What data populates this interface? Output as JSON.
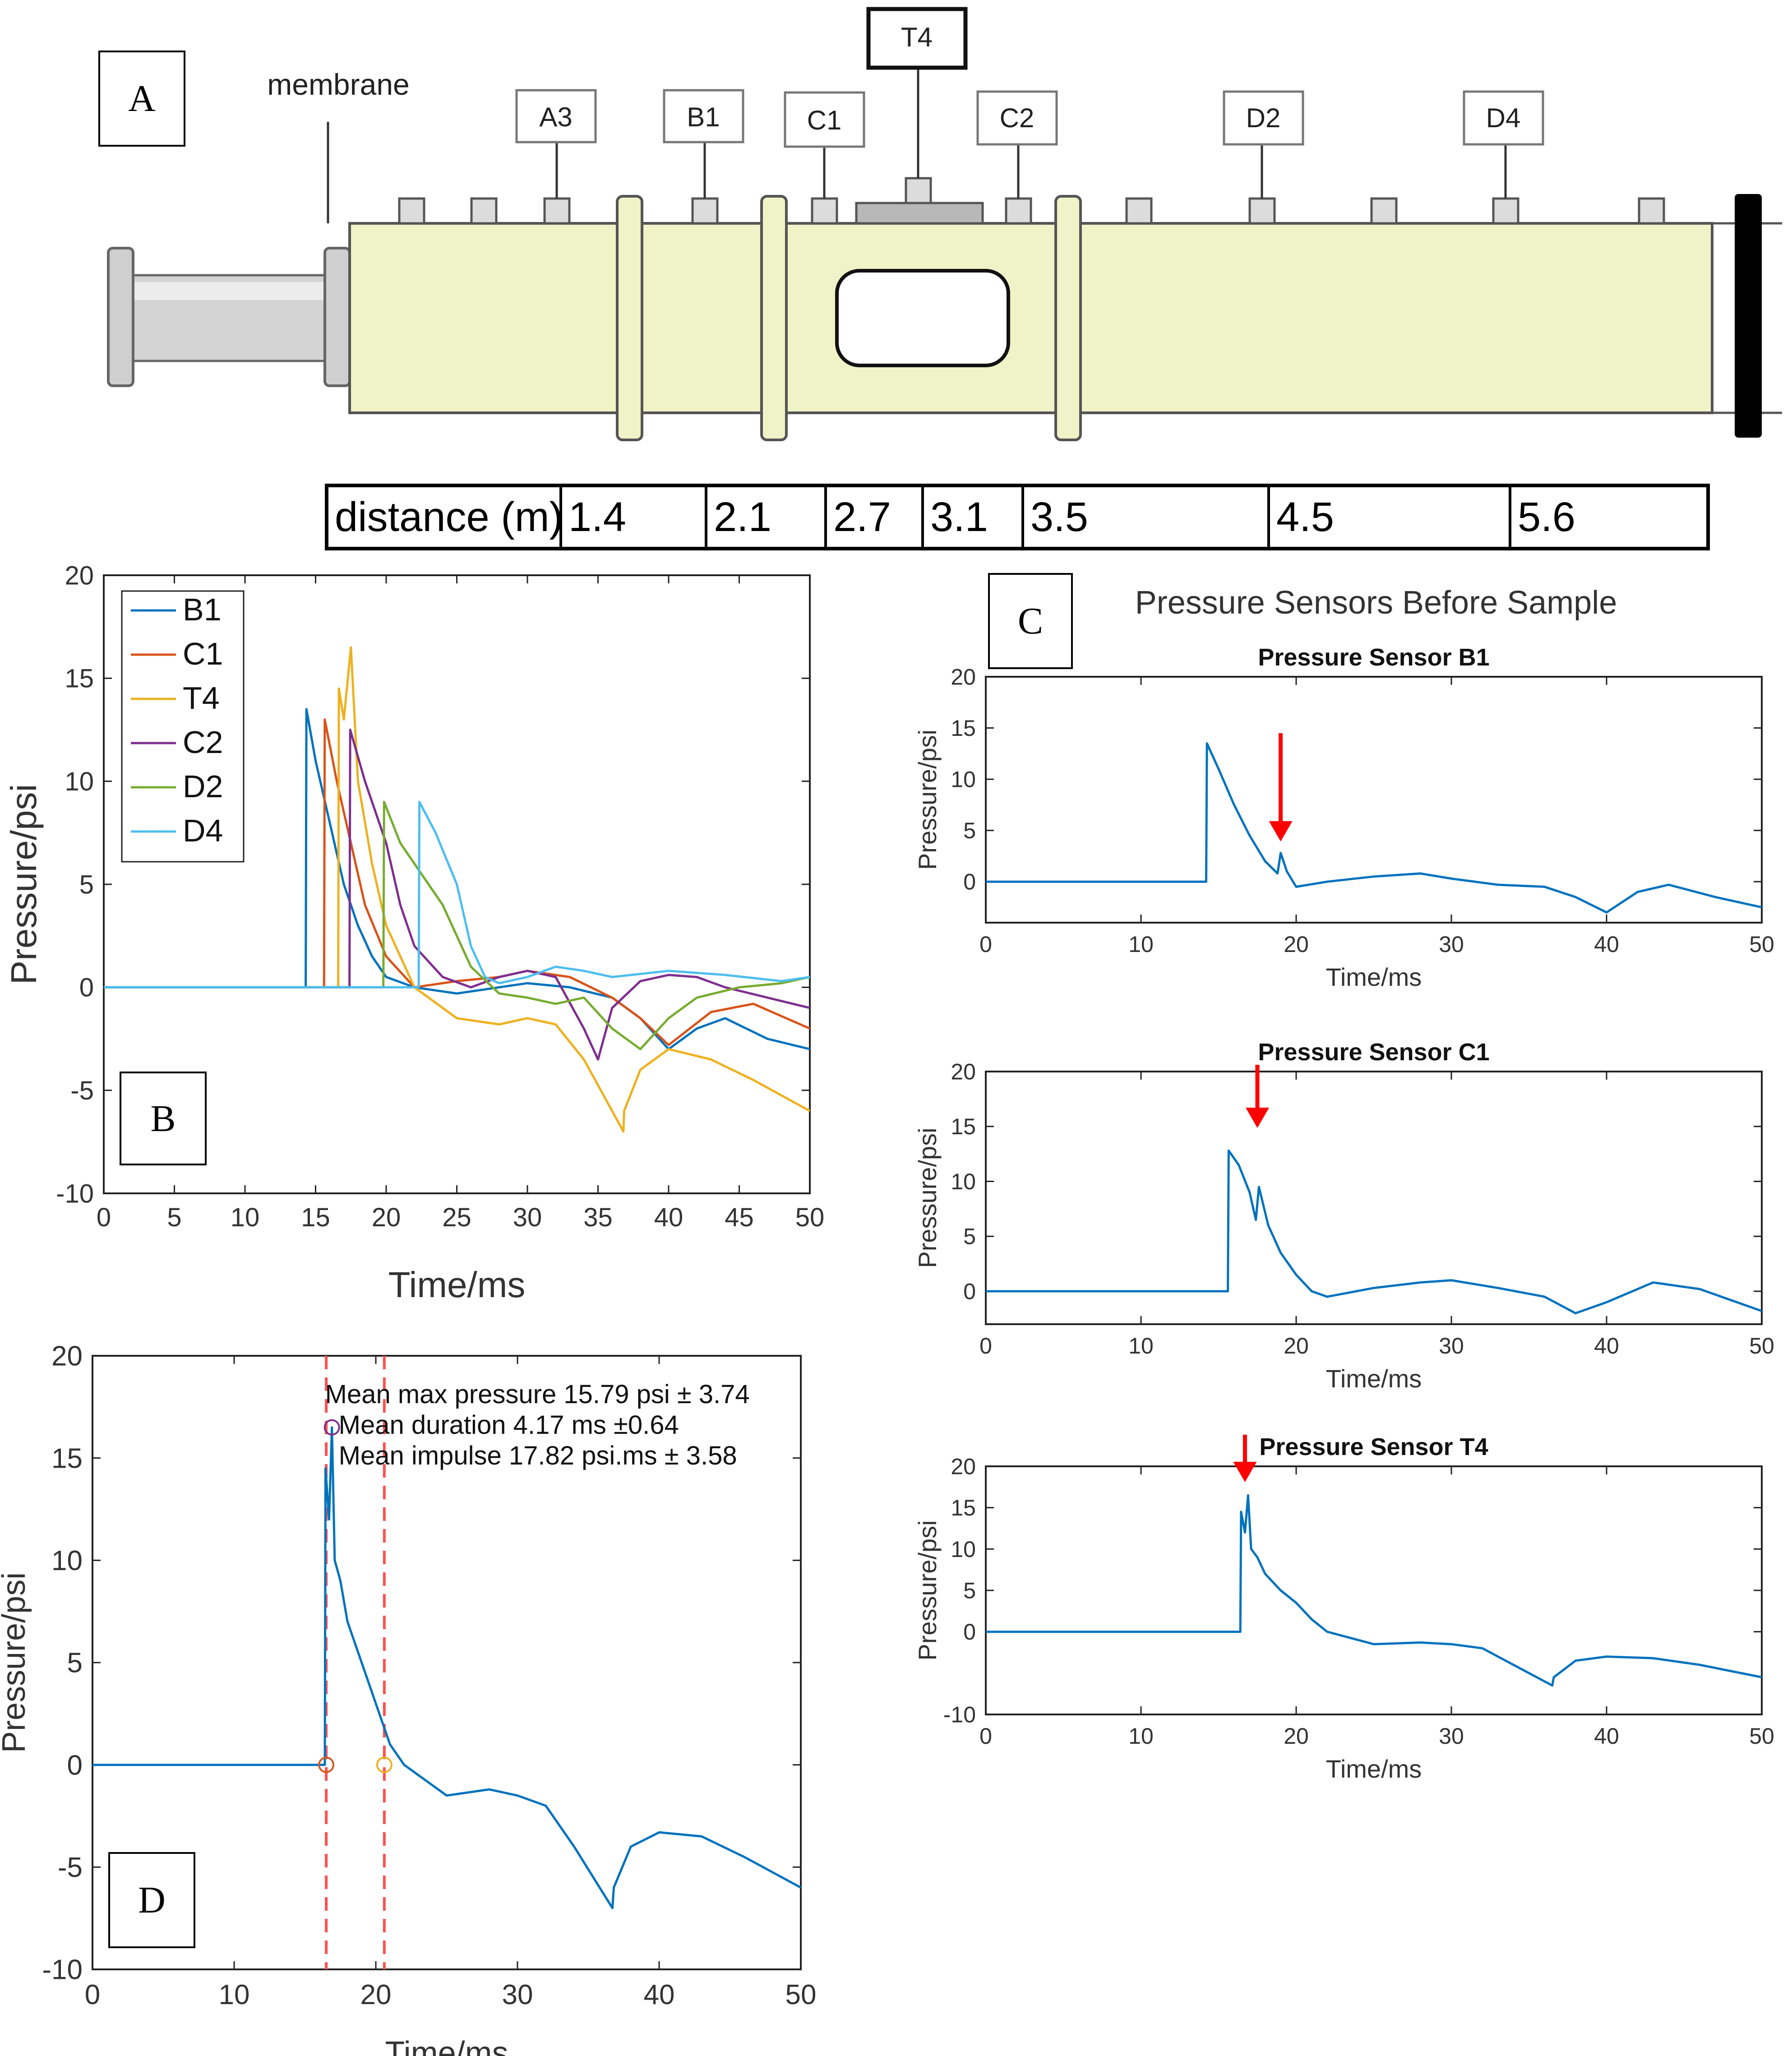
{
  "panels": {
    "A": {
      "label": "A"
    },
    "B": {
      "label": "B"
    },
    "C": {
      "label": "C"
    },
    "D": {
      "label": "D"
    }
  },
  "apparatus": {
    "membrane_label": "membrane",
    "sensor_labels": [
      "A3",
      "B1",
      "C1",
      "T4",
      "C2",
      "D2",
      "D4"
    ],
    "colors": {
      "tube": "#f0f2c8",
      "gauge": "#dcdcdc",
      "window": "#ffffff",
      "end_cap": "#000000"
    }
  },
  "distance_table": {
    "header": "distance (m)",
    "values": [
      "1.4",
      "2.1",
      "2.7",
      "3.1",
      "3.5",
      "4.5",
      "5.6"
    ]
  },
  "panel_C": {
    "title": "Pressure Sensors Before Sample"
  },
  "chart_data": [
    {
      "id": "B",
      "type": "line",
      "title": "",
      "xlabel": "Time/ms",
      "ylabel": "Pressure/psi",
      "xlim": [
        0,
        50
      ],
      "ylim": [
        -10,
        20
      ],
      "xticks": [
        0,
        5,
        10,
        15,
        20,
        25,
        30,
        35,
        40,
        45,
        50
      ],
      "yticks": [
        -10,
        -5,
        0,
        5,
        10,
        15,
        20
      ],
      "legend": "top-left",
      "series": [
        {
          "name": "B1",
          "color": "#0072BD",
          "x": [
            0,
            14.3,
            14.35,
            15,
            16,
            17,
            18,
            19,
            20,
            22,
            25,
            28,
            30,
            33,
            36,
            38,
            40,
            42,
            44,
            47,
            50
          ],
          "y": [
            0,
            0,
            13.5,
            11,
            8,
            5,
            3,
            1.5,
            0.5,
            0,
            -0.3,
            0,
            0.2,
            0,
            -0.5,
            -1.5,
            -3,
            -2,
            -1.5,
            -2.5,
            -3
          ]
        },
        {
          "name": "C1",
          "color": "#D95319",
          "x": [
            0,
            15.6,
            15.65,
            16.5,
            17.5,
            18.5,
            20,
            22,
            25,
            28,
            30,
            33,
            36,
            38,
            40,
            43,
            46,
            50
          ],
          "y": [
            0,
            0,
            13,
            10,
            7,
            4,
            1.5,
            0,
            0.3,
            0.5,
            0.8,
            0.5,
            -0.5,
            -1.5,
            -2.8,
            -1.2,
            -0.8,
            -2
          ]
        },
        {
          "name": "T4",
          "color": "#EDB120",
          "x": [
            0,
            16.6,
            16.65,
            17,
            17.5,
            18,
            19,
            20,
            22,
            25,
            28,
            30,
            32,
            34,
            36.8,
            36.85,
            38,
            40,
            43,
            46,
            50
          ],
          "y": [
            0,
            0,
            14.5,
            13,
            16.5,
            10,
            6,
            3,
            0,
            -1.5,
            -1.8,
            -1.5,
            -1.8,
            -3.5,
            -7,
            -6,
            -4,
            -3,
            -3.5,
            -4.5,
            -6
          ]
        },
        {
          "name": "C2",
          "color": "#7E2F8E",
          "x": [
            0,
            17.4,
            17.45,
            18.5,
            20,
            21,
            22,
            24,
            26,
            28,
            30,
            32,
            34,
            35,
            36,
            38,
            40,
            42,
            44,
            47,
            50
          ],
          "y": [
            0,
            0,
            12.5,
            10,
            7,
            4,
            2,
            0.5,
            0,
            0.5,
            0.8,
            0.5,
            -2,
            -3.5,
            -1,
            0.3,
            0.6,
            0.5,
            0,
            -0.5,
            -1
          ]
        },
        {
          "name": "D2",
          "color": "#77AC30",
          "x": [
            0,
            19.8,
            19.85,
            21,
            22,
            24,
            26,
            28,
            30,
            32,
            34,
            36,
            38,
            40,
            42,
            45,
            48,
            50
          ],
          "y": [
            0,
            0,
            9,
            7,
            6,
            4,
            1,
            -0.3,
            -0.5,
            -0.8,
            -0.5,
            -2,
            -3,
            -1.5,
            -0.5,
            0,
            0.2,
            0.5
          ]
        },
        {
          "name": "D4",
          "color": "#4DBEEE",
          "x": [
            0,
            22.3,
            22.35,
            23.5,
            25,
            26,
            27,
            28,
            30,
            32,
            34,
            36,
            40,
            44,
            48,
            50
          ],
          "y": [
            0,
            0,
            9,
            7.5,
            5,
            2,
            0.5,
            0.2,
            0.5,
            1,
            0.8,
            0.5,
            0.8,
            0.6,
            0.3,
            0.5
          ]
        }
      ]
    },
    {
      "id": "C1_plot",
      "type": "line",
      "title": "Pressure Sensor B1",
      "xlabel": "Time/ms",
      "ylabel": "Pressure/psi",
      "xlim": [
        0,
        50
      ],
      "ylim": [
        -4,
        20
      ],
      "xticks": [
        0,
        10,
        20,
        30,
        40,
        50
      ],
      "yticks": [
        0,
        5,
        10,
        15,
        20
      ],
      "series": [
        {
          "name": "B1",
          "color": "#0072BD",
          "x": [
            0,
            14.2,
            14.25,
            15,
            16,
            17,
            18,
            18.8,
            19,
            19.4,
            20,
            22,
            25,
            28,
            30,
            33,
            36,
            38,
            40,
            42,
            44,
            47,
            50
          ],
          "y": [
            0,
            0,
            13.5,
            11,
            7.5,
            4.5,
            2,
            0.8,
            2.8,
            1,
            -0.5,
            0,
            0.5,
            0.8,
            0.3,
            -0.3,
            -0.5,
            -1.5,
            -3,
            -1,
            -0.3,
            -1.5,
            -2.5
          ]
        }
      ],
      "annotation": {
        "type": "arrow",
        "x": 19,
        "color": "#ff0000"
      }
    },
    {
      "id": "C2_plot",
      "type": "line",
      "title": "Pressure Sensor C1",
      "xlabel": "Time/ms",
      "ylabel": "Pressure/psi",
      "xlim": [
        0,
        50
      ],
      "ylim": [
        -3,
        20
      ],
      "xticks": [
        0,
        10,
        20,
        30,
        40,
        50
      ],
      "yticks": [
        0,
        5,
        10,
        15,
        20
      ],
      "series": [
        {
          "name": "C1",
          "color": "#0072BD",
          "x": [
            0,
            15.6,
            15.65,
            16.3,
            17,
            17.4,
            17.6,
            18.2,
            19,
            20,
            21,
            22,
            25,
            28,
            30,
            33,
            36,
            38,
            40,
            43,
            46,
            50
          ],
          "y": [
            0,
            0,
            12.8,
            11.5,
            9,
            6.5,
            9.5,
            6,
            3.5,
            1.5,
            0,
            -0.5,
            0.3,
            0.8,
            1,
            0.3,
            -0.5,
            -2,
            -1,
            0.8,
            0.2,
            -1.8
          ]
        }
      ],
      "annotation": {
        "type": "arrow",
        "x": 17.5,
        "color": "#ff0000"
      }
    },
    {
      "id": "C3_plot",
      "type": "line",
      "title": "Pressure Sensor T4",
      "xlabel": "Time/ms",
      "ylabel": "Pressure/psi",
      "xlim": [
        0,
        50
      ],
      "ylim": [
        -10,
        20
      ],
      "xticks": [
        0,
        10,
        20,
        30,
        40,
        50
      ],
      "yticks": [
        -10,
        0,
        5,
        10,
        15,
        20
      ],
      "series": [
        {
          "name": "T4",
          "color": "#0072BD",
          "x": [
            0,
            16.4,
            16.45,
            16.7,
            16.9,
            17.1,
            17.5,
            18,
            19,
            20,
            21,
            22,
            25,
            28,
            30,
            32,
            34,
            36.5,
            36.6,
            38,
            40,
            43,
            46,
            50
          ],
          "y": [
            0,
            0,
            14.5,
            12,
            16.5,
            10,
            9,
            7,
            5,
            3.5,
            1.5,
            0,
            -1.5,
            -1.3,
            -1.5,
            -2,
            -4,
            -6.5,
            -5.5,
            -3.5,
            -3,
            -3.2,
            -4,
            -5.5
          ]
        }
      ],
      "annotation": {
        "type": "arrow",
        "x": 16.7,
        "color": "#ff0000"
      }
    },
    {
      "id": "D",
      "type": "line",
      "title": "",
      "xlabel": "Time/ms",
      "ylabel": "Pressure/psi",
      "xlim": [
        0,
        50
      ],
      "ylim": [
        -10,
        20
      ],
      "xticks": [
        0,
        10,
        20,
        30,
        40,
        50
      ],
      "yticks": [
        -10,
        -5,
        0,
        5,
        10,
        15,
        20
      ],
      "series": [
        {
          "name": "T4",
          "color": "#0072BD",
          "x": [
            0,
            16.4,
            16.45,
            16.7,
            16.9,
            17.1,
            17.5,
            18,
            19,
            20,
            21,
            22,
            25,
            28,
            30,
            32,
            34,
            36.7,
            36.8,
            38,
            40,
            43,
            46,
            50
          ],
          "y": [
            0,
            0,
            14.5,
            12,
            16.5,
            10,
            9,
            7,
            5,
            3,
            1,
            0,
            -1.5,
            -1.2,
            -1.5,
            -2,
            -4,
            -7,
            -6,
            -4,
            -3.3,
            -3.5,
            -4.5,
            -6
          ]
        }
      ],
      "vlines": [
        {
          "x": 16.5,
          "color": "#ff5050"
        },
        {
          "x": 20.6,
          "color": "#ff5050"
        }
      ],
      "markers": [
        {
          "x": 16.5,
          "y": 0,
          "color": "#D95319"
        },
        {
          "x": 16.9,
          "y": 16.5,
          "color": "#7E2F8E"
        },
        {
          "x": 20.6,
          "y": 0,
          "color": "#EDB120"
        }
      ],
      "annotations": [
        "Mean max pressure 15.79 psi ± 3.74",
        "Mean duration 4.17 ms ±0.64",
        "Mean impulse 17.82 psi.ms ± 3.58"
      ]
    }
  ]
}
